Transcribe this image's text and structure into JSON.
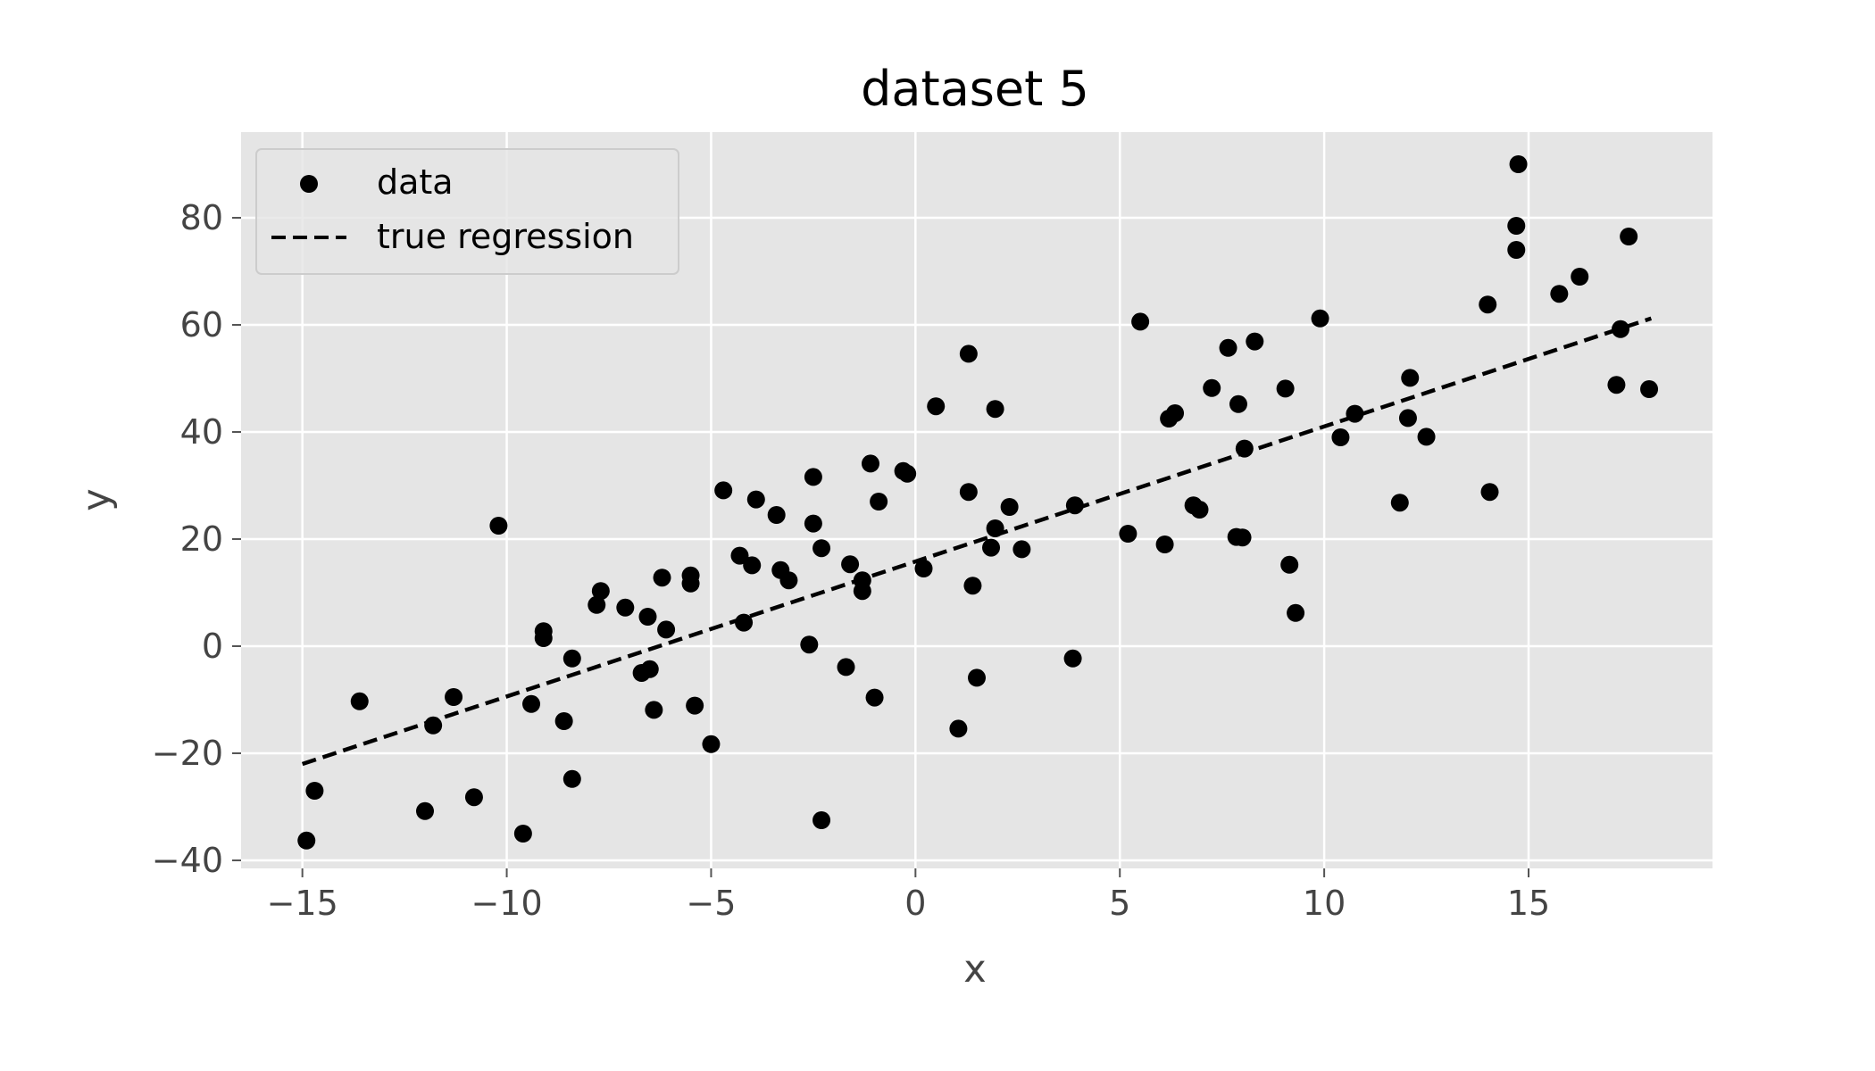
{
  "chart_data": {
    "type": "scatter",
    "title": "dataset 5",
    "xlabel": "x",
    "ylabel": "y",
    "xlim": [
      -16.5,
      19.5
    ],
    "ylim": [
      -41.5,
      96
    ],
    "xticks": [
      -15,
      -10,
      -5,
      0,
      5,
      10,
      15
    ],
    "yticks": [
      -40,
      -20,
      0,
      20,
      40,
      60,
      80
    ],
    "grid": true,
    "legend_position": "top-left",
    "colors": {
      "background": "#e5e5e5",
      "grid": "#ffffff",
      "marker": "#000000",
      "line": "#000000",
      "tick_text": "#444444"
    },
    "series": [
      {
        "name": "data",
        "kind": "scatter",
        "points": [
          [
            -14.9,
            -36.3
          ],
          [
            -14.7,
            -27.0
          ],
          [
            -13.6,
            -10.3
          ],
          [
            -12.0,
            -30.8
          ],
          [
            -11.8,
            -14.8
          ],
          [
            -11.3,
            -9.5
          ],
          [
            -10.8,
            -28.2
          ],
          [
            -10.2,
            22.5
          ],
          [
            -9.6,
            -35.0
          ],
          [
            -9.4,
            -10.8
          ],
          [
            -9.1,
            2.8
          ],
          [
            -9.1,
            1.5
          ],
          [
            -8.6,
            -14.0
          ],
          [
            -8.4,
            -24.8
          ],
          [
            -8.4,
            -2.3
          ],
          [
            -7.8,
            7.7
          ],
          [
            -7.7,
            10.3
          ],
          [
            -7.1,
            7.2
          ],
          [
            -6.7,
            -5.0
          ],
          [
            -6.55,
            5.5
          ],
          [
            -6.5,
            -4.3
          ],
          [
            -6.4,
            -11.9
          ],
          [
            -6.2,
            12.8
          ],
          [
            -6.1,
            3.1
          ],
          [
            -5.5,
            13.2
          ],
          [
            -5.5,
            11.7
          ],
          [
            -5.4,
            -11.1
          ],
          [
            -5.0,
            -18.3
          ],
          [
            -4.7,
            29.1
          ],
          [
            -4.3,
            16.9
          ],
          [
            -4.2,
            4.4
          ],
          [
            -4.0,
            15.1
          ],
          [
            -3.9,
            27.4
          ],
          [
            -3.4,
            24.5
          ],
          [
            -3.3,
            14.2
          ],
          [
            -3.1,
            12.3
          ],
          [
            -2.6,
            0.3
          ],
          [
            -2.5,
            31.6
          ],
          [
            -2.5,
            22.9
          ],
          [
            -2.3,
            18.3
          ],
          [
            -2.3,
            -32.5
          ],
          [
            -1.7,
            -3.9
          ],
          [
            -1.6,
            15.3
          ],
          [
            -1.3,
            12.3
          ],
          [
            -1.3,
            10.3
          ],
          [
            -1.1,
            34.1
          ],
          [
            -1.0,
            -9.6
          ],
          [
            -0.9,
            27.0
          ],
          [
            -0.3,
            32.7
          ],
          [
            -0.2,
            32.2
          ],
          [
            0.2,
            14.5
          ],
          [
            0.5,
            44.8
          ],
          [
            1.05,
            -15.4
          ],
          [
            1.3,
            54.6
          ],
          [
            1.3,
            28.8
          ],
          [
            1.4,
            11.3
          ],
          [
            1.5,
            -5.9
          ],
          [
            1.85,
            18.4
          ],
          [
            1.95,
            22.0
          ],
          [
            1.95,
            44.3
          ],
          [
            2.3,
            26.0
          ],
          [
            2.6,
            18.1
          ],
          [
            3.85,
            -2.3
          ],
          [
            3.9,
            26.3
          ],
          [
            5.2,
            21.0
          ],
          [
            5.5,
            60.6
          ],
          [
            6.1,
            19.0
          ],
          [
            6.2,
            42.5
          ],
          [
            6.35,
            43.5
          ],
          [
            6.8,
            26.3
          ],
          [
            6.95,
            25.5
          ],
          [
            7.25,
            48.2
          ],
          [
            7.65,
            55.7
          ],
          [
            7.85,
            20.4
          ],
          [
            7.9,
            45.2
          ],
          [
            8.0,
            20.3
          ],
          [
            8.05,
            36.9
          ],
          [
            8.3,
            56.9
          ],
          [
            9.05,
            48.1
          ],
          [
            9.15,
            15.2
          ],
          [
            9.3,
            6.2
          ],
          [
            9.9,
            61.2
          ],
          [
            10.4,
            39.0
          ],
          [
            10.75,
            43.4
          ],
          [
            11.85,
            26.8
          ],
          [
            12.05,
            42.6
          ],
          [
            12.1,
            50.1
          ],
          [
            12.5,
            39.1
          ],
          [
            14.0,
            63.8
          ],
          [
            14.05,
            28.8
          ],
          [
            14.7,
            78.5
          ],
          [
            14.7,
            74.0
          ],
          [
            14.75,
            90.0
          ],
          [
            15.75,
            65.8
          ],
          [
            16.25,
            69.0
          ],
          [
            17.15,
            48.8
          ],
          [
            17.25,
            59.2
          ],
          [
            17.45,
            76.5
          ],
          [
            17.95,
            48.0
          ]
        ]
      },
      {
        "name": "true regression",
        "kind": "line",
        "style": "dashed",
        "points": [
          [
            -15,
            -22
          ],
          [
            18,
            61.2
          ]
        ]
      }
    ]
  }
}
